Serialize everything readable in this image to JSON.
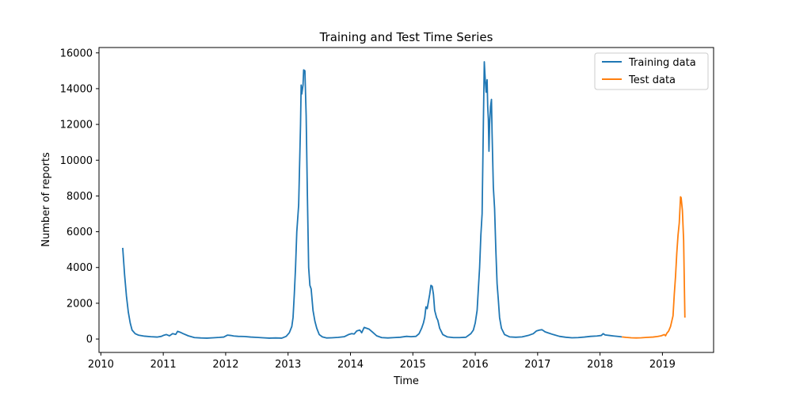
{
  "chart_data": {
    "type": "line",
    "title": "Training and Test Time Series",
    "xlabel": "Time",
    "ylabel": "Number of reports",
    "xlim": [
      2009.97,
      2019.82
    ],
    "ylim": [
      -750,
      16300
    ],
    "x_ticks": [
      2010,
      2011,
      2012,
      2013,
      2014,
      2015,
      2016,
      2017,
      2018,
      2019
    ],
    "y_ticks": [
      0,
      2000,
      4000,
      6000,
      8000,
      10000,
      12000,
      14000,
      16000
    ],
    "grid": false,
    "legend": {
      "position": "top-right",
      "entries": [
        "Training data",
        "Test data"
      ]
    },
    "colors": {
      "training": "#1f77b4",
      "test": "#ff7f0e"
    },
    "series": [
      {
        "name": "Training data",
        "color": "#1f77b4",
        "points": [
          [
            2010.35,
            5100
          ],
          [
            2010.38,
            3600
          ],
          [
            2010.41,
            2400
          ],
          [
            2010.44,
            1500
          ],
          [
            2010.47,
            900
          ],
          [
            2010.5,
            500
          ],
          [
            2010.55,
            300
          ],
          [
            2010.6,
            220
          ],
          [
            2010.7,
            160
          ],
          [
            2010.8,
            130
          ],
          [
            2010.9,
            110
          ],
          [
            2010.97,
            150
          ],
          [
            2011.0,
            200
          ],
          [
            2011.05,
            250
          ],
          [
            2011.1,
            180
          ],
          [
            2011.15,
            300
          ],
          [
            2011.2,
            260
          ],
          [
            2011.23,
            430
          ],
          [
            2011.27,
            380
          ],
          [
            2011.32,
            300
          ],
          [
            2011.4,
            180
          ],
          [
            2011.5,
            80
          ],
          [
            2011.6,
            60
          ],
          [
            2011.7,
            50
          ],
          [
            2011.8,
            70
          ],
          [
            2011.9,
            90
          ],
          [
            2011.97,
            110
          ],
          [
            2012.03,
            220
          ],
          [
            2012.08,
            200
          ],
          [
            2012.13,
            170
          ],
          [
            2012.2,
            150
          ],
          [
            2012.3,
            140
          ],
          [
            2012.4,
            110
          ],
          [
            2012.5,
            90
          ],
          [
            2012.6,
            70
          ],
          [
            2012.7,
            50
          ],
          [
            2012.8,
            60
          ],
          [
            2012.9,
            50
          ],
          [
            2012.97,
            150
          ],
          [
            2013.02,
            350
          ],
          [
            2013.06,
            700
          ],
          [
            2013.08,
            1200
          ],
          [
            2013.1,
            2500
          ],
          [
            2013.12,
            4000
          ],
          [
            2013.14,
            6000
          ],
          [
            2013.17,
            7500
          ],
          [
            2013.2,
            12000
          ],
          [
            2013.21,
            14200
          ],
          [
            2013.22,
            13700
          ],
          [
            2013.24,
            14200
          ],
          [
            2013.25,
            15050
          ],
          [
            2013.27,
            15000
          ],
          [
            2013.29,
            12500
          ],
          [
            2013.31,
            8000
          ],
          [
            2013.33,
            4000
          ],
          [
            2013.35,
            3000
          ],
          [
            2013.37,
            2800
          ],
          [
            2013.4,
            1600
          ],
          [
            2013.43,
            1000
          ],
          [
            2013.46,
            600
          ],
          [
            2013.5,
            250
          ],
          [
            2013.55,
            120
          ],
          [
            2013.62,
            60
          ],
          [
            2013.7,
            70
          ],
          [
            2013.8,
            90
          ],
          [
            2013.9,
            130
          ],
          [
            2013.97,
            250
          ],
          [
            2014.02,
            300
          ],
          [
            2014.06,
            280
          ],
          [
            2014.1,
            450
          ],
          [
            2014.15,
            500
          ],
          [
            2014.18,
            350
          ],
          [
            2014.22,
            650
          ],
          [
            2014.26,
            600
          ],
          [
            2014.3,
            550
          ],
          [
            2014.35,
            400
          ],
          [
            2014.42,
            180
          ],
          [
            2014.5,
            80
          ],
          [
            2014.6,
            60
          ],
          [
            2014.7,
            80
          ],
          [
            2014.8,
            100
          ],
          [
            2014.9,
            150
          ],
          [
            2014.97,
            130
          ],
          [
            2015.05,
            150
          ],
          [
            2015.1,
            300
          ],
          [
            2015.14,
            600
          ],
          [
            2015.17,
            900
          ],
          [
            2015.19,
            1200
          ],
          [
            2015.21,
            1800
          ],
          [
            2015.23,
            1700
          ],
          [
            2015.25,
            2100
          ],
          [
            2015.27,
            2500
          ],
          [
            2015.29,
            3000
          ],
          [
            2015.31,
            2950
          ],
          [
            2015.33,
            2500
          ],
          [
            2015.35,
            1600
          ],
          [
            2015.38,
            1200
          ],
          [
            2015.4,
            1050
          ],
          [
            2015.43,
            600
          ],
          [
            2015.48,
            250
          ],
          [
            2015.55,
            120
          ],
          [
            2015.65,
            80
          ],
          [
            2015.75,
            80
          ],
          [
            2015.85,
            100
          ],
          [
            2015.93,
            300
          ],
          [
            2015.97,
            500
          ],
          [
            2016.0,
            900
          ],
          [
            2016.03,
            1600
          ],
          [
            2016.05,
            2800
          ],
          [
            2016.07,
            4000
          ],
          [
            2016.09,
            5800
          ],
          [
            2016.11,
            7000
          ],
          [
            2016.12,
            9500
          ],
          [
            2016.13,
            12000
          ],
          [
            2016.145,
            15500
          ],
          [
            2016.16,
            14500
          ],
          [
            2016.175,
            13800
          ],
          [
            2016.19,
            14500
          ],
          [
            2016.2,
            13000
          ],
          [
            2016.21,
            12300
          ],
          [
            2016.22,
            10500
          ],
          [
            2016.23,
            12000
          ],
          [
            2016.245,
            13000
          ],
          [
            2016.26,
            13400
          ],
          [
            2016.27,
            11500
          ],
          [
            2016.29,
            8500
          ],
          [
            2016.31,
            7300
          ],
          [
            2016.33,
            5000
          ],
          [
            2016.35,
            3100
          ],
          [
            2016.37,
            2200
          ],
          [
            2016.39,
            1200
          ],
          [
            2016.42,
            600
          ],
          [
            2016.47,
            250
          ],
          [
            2016.55,
            120
          ],
          [
            2016.65,
            100
          ],
          [
            2016.75,
            120
          ],
          [
            2016.85,
            200
          ],
          [
            2016.93,
            300
          ],
          [
            2016.98,
            450
          ],
          [
            2017.03,
            500
          ],
          [
            2017.07,
            520
          ],
          [
            2017.12,
            400
          ],
          [
            2017.18,
            330
          ],
          [
            2017.25,
            250
          ],
          [
            2017.35,
            150
          ],
          [
            2017.45,
            100
          ],
          [
            2017.55,
            70
          ],
          [
            2017.65,
            80
          ],
          [
            2017.75,
            110
          ],
          [
            2017.85,
            150
          ],
          [
            2017.95,
            170
          ],
          [
            2018.02,
            200
          ],
          [
            2018.05,
            300
          ],
          [
            2018.08,
            230
          ],
          [
            2018.15,
            200
          ],
          [
            2018.22,
            170
          ],
          [
            2018.3,
            140
          ],
          [
            2018.35,
            120
          ]
        ]
      },
      {
        "name": "Test data",
        "color": "#ff7f0e",
        "points": [
          [
            2018.35,
            120
          ],
          [
            2018.42,
            90
          ],
          [
            2018.5,
            70
          ],
          [
            2018.58,
            60
          ],
          [
            2018.66,
            70
          ],
          [
            2018.75,
            90
          ],
          [
            2018.85,
            110
          ],
          [
            2018.92,
            140
          ],
          [
            2018.98,
            180
          ],
          [
            2019.03,
            250
          ],
          [
            2019.05,
            180
          ],
          [
            2019.07,
            320
          ],
          [
            2019.1,
            450
          ],
          [
            2019.13,
            700
          ],
          [
            2019.15,
            1000
          ],
          [
            2019.17,
            1300
          ],
          [
            2019.19,
            2500
          ],
          [
            2019.21,
            3500
          ],
          [
            2019.23,
            4800
          ],
          [
            2019.25,
            5800
          ],
          [
            2019.27,
            6500
          ],
          [
            2019.29,
            7950
          ],
          [
            2019.3,
            7900
          ],
          [
            2019.32,
            7200
          ],
          [
            2019.34,
            5500
          ],
          [
            2019.36,
            1200
          ]
        ]
      }
    ]
  }
}
